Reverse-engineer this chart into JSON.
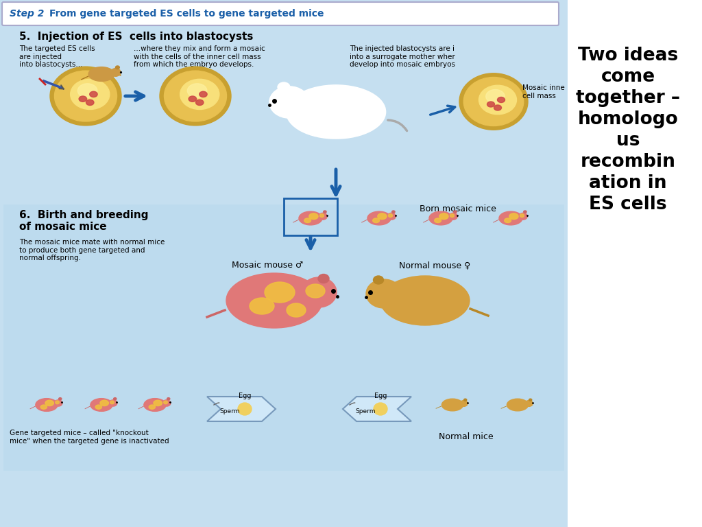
{
  "bg_color": "#c5dff0",
  "right_panel_color": "#ffffff",
  "title_color": "#1a5fa8",
  "right_title": "Two ideas\ncome\ntogether –\nhomologo\nus\nrecombin\nation in\nES cells",
  "section5_title": "5.  Injection of ES  cells into blastocysts",
  "section6_title": "6.  Birth and breeding\nof mosaic mice",
  "section6_body": "The mosaic mice mate with normal mice\nto produce both gene targeted and\nnormal offspring.",
  "col1_text": "The targeted ES cells\nare injected\ninto blastocysts...",
  "col2_text": "...where they mix and form a mosaic\nwith the cells of the inner cell mass\nfrom which the embryo develops.",
  "col3_text": "The injected blastocysts are i\ninto a surrogate mother wher\ndevelop into mosaic embryos",
  "mosaic_inner_label": "Mosaic inne\ncell mass",
  "born_mosaic_label": "Born mosaic mice",
  "mosaic_mouse_label": "Mosaic mouse ♂",
  "normal_mouse_label": "Normal mouse ♀",
  "gene_targeted_label": "Gene targeted mice – called \"knockout\nmice\" when the targeted gene is inactivated",
  "normal_mice_label": "Normal mice",
  "egg_label": "Egg",
  "sperm_label": "Sperm"
}
